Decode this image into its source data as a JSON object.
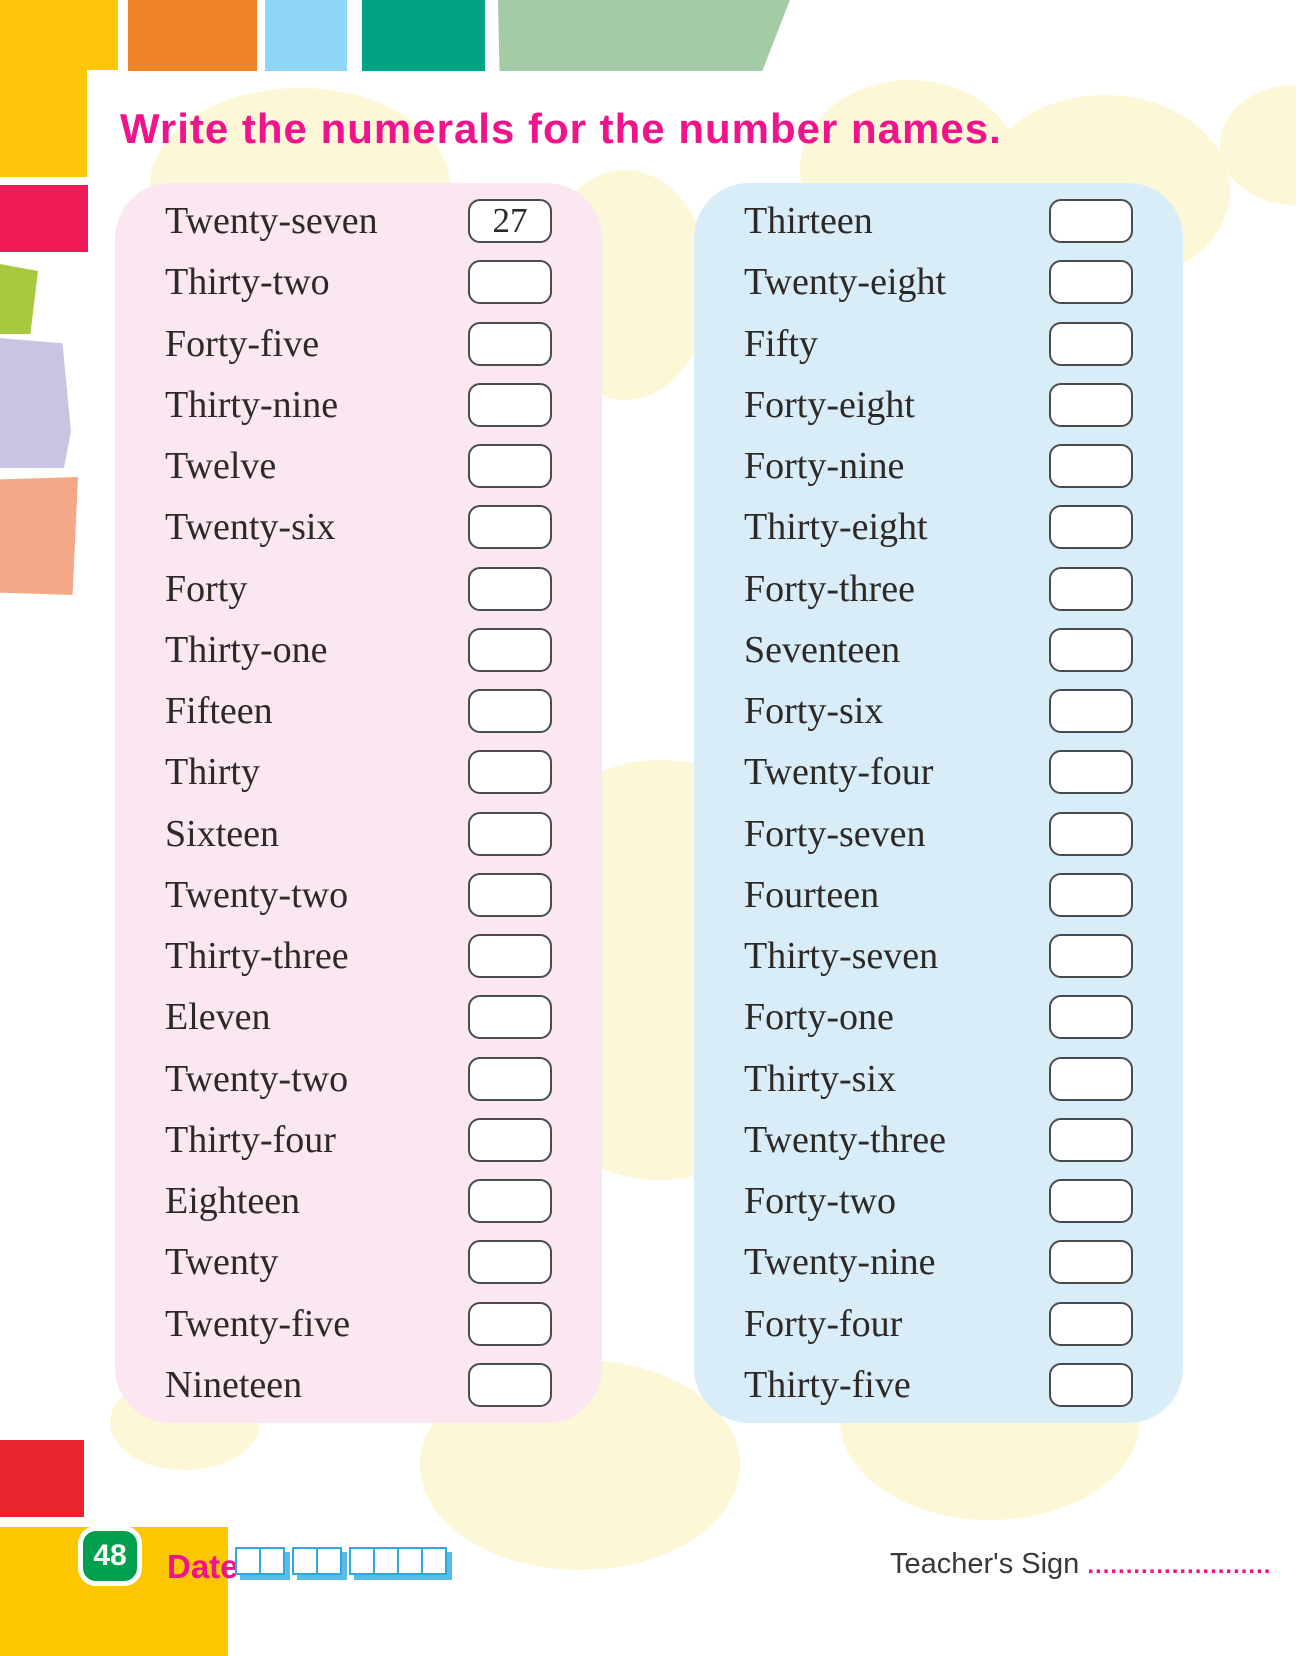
{
  "heading": {
    "text": "Write the numerals for the number names."
  },
  "panels": {
    "left": {
      "items": [
        {
          "label": "Twenty-seven",
          "answer": "27"
        },
        {
          "label": "Thirty-two",
          "answer": ""
        },
        {
          "label": "Forty-five",
          "answer": ""
        },
        {
          "label": "Thirty-nine",
          "answer": ""
        },
        {
          "label": "Twelve",
          "answer": ""
        },
        {
          "label": "Twenty-six",
          "answer": ""
        },
        {
          "label": "Forty",
          "answer": ""
        },
        {
          "label": "Thirty-one",
          "answer": ""
        },
        {
          "label": "Fifteen",
          "answer": ""
        },
        {
          "label": "Thirty",
          "answer": ""
        },
        {
          "label": "Sixteen",
          "answer": ""
        },
        {
          "label": "Twenty-two",
          "answer": ""
        },
        {
          "label": "Thirty-three",
          "answer": ""
        },
        {
          "label": "Eleven",
          "answer": ""
        },
        {
          "label": "Twenty-two",
          "answer": ""
        },
        {
          "label": "Thirty-four",
          "answer": ""
        },
        {
          "label": "Eighteen",
          "answer": ""
        },
        {
          "label": "Twenty",
          "answer": ""
        },
        {
          "label": "Twenty-five",
          "answer": ""
        },
        {
          "label": "Nineteen",
          "answer": ""
        }
      ]
    },
    "right": {
      "items": [
        {
          "label": "Thirteen",
          "answer": ""
        },
        {
          "label": "Twenty-eight",
          "answer": ""
        },
        {
          "label": "Fifty",
          "answer": ""
        },
        {
          "label": "Forty-eight",
          "answer": ""
        },
        {
          "label": "Forty-nine",
          "answer": ""
        },
        {
          "label": "Thirty-eight",
          "answer": ""
        },
        {
          "label": "Forty-three",
          "answer": ""
        },
        {
          "label": "Seventeen",
          "answer": ""
        },
        {
          "label": "Forty-six",
          "answer": ""
        },
        {
          "label": "Twenty-four",
          "answer": ""
        },
        {
          "label": "Forty-seven",
          "answer": ""
        },
        {
          "label": "Fourteen",
          "answer": ""
        },
        {
          "label": "Thirty-seven",
          "answer": ""
        },
        {
          "label": "Forty-one",
          "answer": ""
        },
        {
          "label": "Thirty-six",
          "answer": ""
        },
        {
          "label": "Twenty-three",
          "answer": ""
        },
        {
          "label": "Forty-two",
          "answer": ""
        },
        {
          "label": "Twenty-nine",
          "answer": ""
        },
        {
          "label": "Forty-four",
          "answer": ""
        },
        {
          "label": "Thirty-five",
          "answer": ""
        }
      ]
    }
  },
  "footer": {
    "page_number": "48",
    "date_label": "Date",
    "date_box_groups": [
      2,
      2,
      4
    ],
    "teachers_sign_label": "Teacher's Sign",
    "teachers_sign_dots": "........................"
  },
  "colors": {
    "heading_pink": "#F0148C",
    "panel_pink": "#FAE7F1",
    "panel_blue": "#D9EDF9",
    "circle_pale_yellow": "#FCF7D6",
    "badge_green": "#00A04E",
    "footer_yellow": "#FCC600",
    "footer_red": "#E9242D",
    "date_box_blue": "#2FA8E1",
    "answer_box_border": "#4A4B4D"
  }
}
